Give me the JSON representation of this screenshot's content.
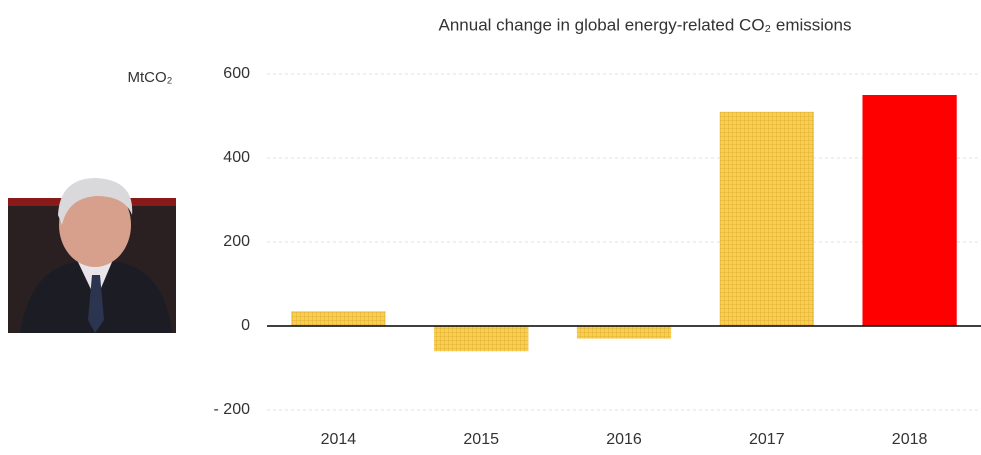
{
  "chart_data": {
    "type": "bar",
    "title": "Annual change in global energy-related CO₂ emissions",
    "y_axis_label": "MtCO₂",
    "categories": [
      "2014",
      "2015",
      "2016",
      "2017",
      "2018"
    ],
    "values": [
      35,
      -60,
      -30,
      510,
      550
    ],
    "colors": [
      "#f6c63f",
      "#f6c63f",
      "#f6c63f",
      "#f6c63f",
      "#ff0000"
    ],
    "hatched": [
      true,
      true,
      true,
      true,
      false
    ],
    "ylim": [
      -200,
      600
    ],
    "yticks": [
      {
        "value": -200,
        "label": "- 200"
      },
      0,
      200,
      400,
      600
    ],
    "grid": true
  }
}
